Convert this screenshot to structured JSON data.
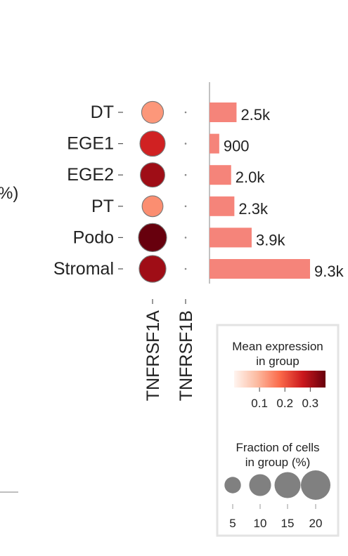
{
  "chart_data": {
    "type": "dotplot",
    "cell_types": [
      "DT",
      "EGE1",
      "EGE2",
      "PT",
      "Podo",
      "Stromal"
    ],
    "genes": [
      "TNFRSF1A",
      "TNFRSF1B"
    ],
    "left_edge_text": "%)",
    "dots": [
      {
        "group": "DT",
        "gene": "TNFRSF1A",
        "mean_expression": 0.13,
        "fraction_pct": 10
      },
      {
        "group": "EGE1",
        "gene": "TNFRSF1A",
        "mean_expression": 0.26,
        "fraction_pct": 14
      },
      {
        "group": "EGE2",
        "gene": "TNFRSF1A",
        "mean_expression": 0.31,
        "fraction_pct": 13
      },
      {
        "group": "PT",
        "gene": "TNFRSF1A",
        "mean_expression": 0.14,
        "fraction_pct": 9
      },
      {
        "group": "Podo",
        "gene": "TNFRSF1A",
        "mean_expression": 0.36,
        "fraction_pct": 18
      },
      {
        "group": "Stromal",
        "gene": "TNFRSF1A",
        "mean_expression": 0.31,
        "fraction_pct": 16
      },
      {
        "group": "DT",
        "gene": "TNFRSF1B",
        "mean_expression": 0.0,
        "fraction_pct": 0.5
      },
      {
        "group": "EGE1",
        "gene": "TNFRSF1B",
        "mean_expression": 0.0,
        "fraction_pct": 0.5
      },
      {
        "group": "EGE2",
        "gene": "TNFRSF1B",
        "mean_expression": 0.0,
        "fraction_pct": 0.5
      },
      {
        "group": "PT",
        "gene": "TNFRSF1B",
        "mean_expression": 0.0,
        "fraction_pct": 0.5
      },
      {
        "group": "Podo",
        "gene": "TNFRSF1B",
        "mean_expression": 0.0,
        "fraction_pct": 0.5
      },
      {
        "group": "Stromal",
        "gene": "TNFRSF1B",
        "mean_expression": 0.0,
        "fraction_pct": 0.5
      }
    ],
    "cell_counts": {
      "values": [
        2500,
        900,
        2000,
        2300,
        3900,
        9300
      ],
      "labels": [
        "2.5k",
        "900",
        "2.0k",
        "2.3k",
        "3.9k",
        "9.3k"
      ],
      "color": "#f5847a"
    },
    "color_legend": {
      "title_line1": "Mean expression",
      "title_line2": "in group",
      "ticks": [
        0.1,
        0.2,
        0.3
      ],
      "tick_labels": [
        "0.1",
        "0.2",
        "0.3"
      ],
      "range": [
        0.0,
        0.36
      ],
      "colormap": "Reds"
    },
    "size_legend": {
      "title_line1": "Fraction of cells",
      "title_line2": "in group (%)",
      "values": [
        5,
        10,
        15,
        20
      ],
      "tick_labels": [
        "5",
        "10",
        "15",
        "20"
      ],
      "color": "#808080"
    }
  }
}
